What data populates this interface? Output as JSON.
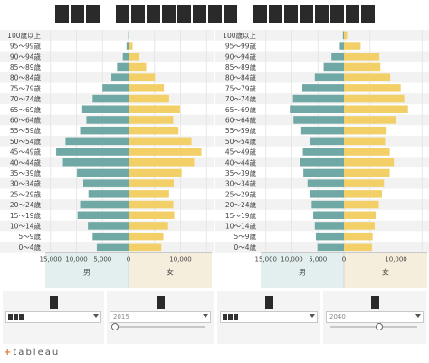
{
  "page": {
    "title_glyph_groups": [
      3,
      8,
      8
    ]
  },
  "colors": {
    "male": "#6fa8a5",
    "female": "#f2cf67",
    "male_bg": "#e2efee",
    "female_bg": "#f6eedd",
    "row_alt": "#f2f2f2",
    "text": "#444444"
  },
  "chart_data": [
    {
      "type": "bar",
      "orientation": "horizontal-butterfly",
      "categories": [
        "100歳以上",
        "95～99歳",
        "90～94歳",
        "85～89歳",
        "80～84歳",
        "75～79歳",
        "70～74歳",
        "65～69歳",
        "60～64歳",
        "55～59歳",
        "50～54歳",
        "45～49歳",
        "40～44歳",
        "35～39歳",
        "30～34歳",
        "25～29歳",
        "20～24歳",
        "15～19歳",
        "10～14歳",
        "5～9歳",
        "0～4歳"
      ],
      "series": [
        {
          "name": "男",
          "values": [
            60,
            380,
            1100,
            2200,
            3300,
            5000,
            6900,
            8900,
            8100,
            9300,
            12100,
            13900,
            12600,
            9900,
            8700,
            7700,
            9300,
            9800,
            7800,
            6900,
            6100
          ]
        },
        {
          "name": "女",
          "values": [
            120,
            800,
            2100,
            3400,
            5100,
            6800,
            7800,
            9900,
            8600,
            9600,
            12100,
            14000,
            12600,
            10200,
            8700,
            7800,
            8600,
            8800,
            7600,
            6700,
            6300
          ]
        }
      ],
      "xlabels": [
        "男",
        "女"
      ],
      "xticks_left": [
        "15,000",
        "10,000",
        "5,000",
        "0"
      ],
      "xticks_right": [
        "0",
        "10,000"
      ],
      "xlim": [
        -16000,
        16000
      ],
      "grid": true,
      "year": "2015"
    },
    {
      "type": "bar",
      "orientation": "horizontal-butterfly",
      "categories": [
        "100歳以上",
        "95～99歳",
        "90～94歳",
        "85～89歳",
        "80～84歳",
        "75～79歳",
        "70～74歳",
        "65～69歳",
        "60～64歳",
        "55～59歳",
        "50～54歳",
        "45～49歳",
        "40～44歳",
        "35～39歳",
        "30～34歳",
        "25～29歳",
        "20～24歳",
        "15～19歳",
        "10～14歳",
        "5～9歳",
        "0～4歳"
      ],
      "series": [
        {
          "name": "男",
          "values": [
            200,
            800,
            2400,
            3900,
            5600,
            8000,
            9800,
            10400,
            9700,
            8200,
            6600,
            7900,
            8400,
            7800,
            7000,
            6500,
            6200,
            5900,
            5600,
            5400,
            5100
          ]
        },
        {
          "name": "女",
          "values": [
            600,
            3200,
            6800,
            7000,
            8900,
            10900,
            11600,
            12300,
            10100,
            8200,
            7900,
            8800,
            9600,
            8800,
            7700,
            7300,
            6700,
            6100,
            5900,
            5500,
            5400
          ]
        }
      ],
      "xlabels": [
        "男",
        "女"
      ],
      "xticks_left": [
        "15,000",
        "10,000",
        "5,000",
        "0"
      ],
      "xticks_right": [
        "0",
        "10,000"
      ],
      "xlim": [
        -16000,
        16000
      ],
      "grid": true,
      "year": "2040"
    }
  ],
  "controls": [
    {
      "year": "2015",
      "slider": 0.0
    },
    {
      "year": "2040",
      "slider": 0.55
    }
  ],
  "footer": {
    "logo": "+ableau"
  }
}
